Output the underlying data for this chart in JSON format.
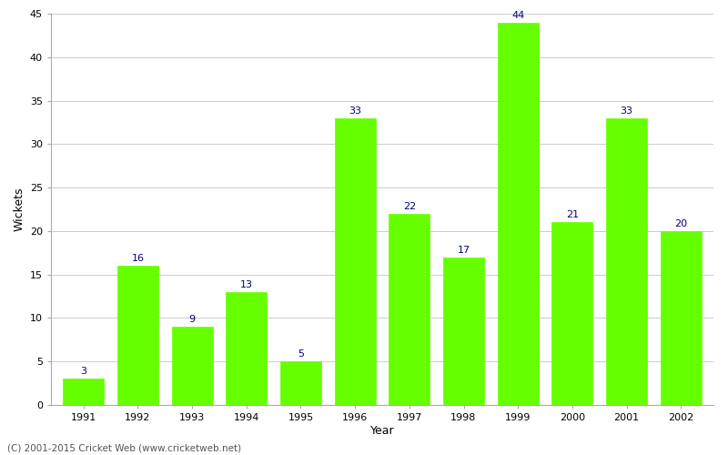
{
  "years": [
    "1991",
    "1992",
    "1993",
    "1994",
    "1995",
    "1996",
    "1997",
    "1998",
    "1999",
    "2000",
    "2001",
    "2002"
  ],
  "values": [
    3,
    16,
    9,
    13,
    5,
    33,
    22,
    17,
    44,
    21,
    33,
    20
  ],
  "bar_color": "#66ff00",
  "bar_edge_color": "#66ff00",
  "label_color": "#000080",
  "xlabel": "Year",
  "ylabel": "Wickets",
  "ylim": [
    0,
    45
  ],
  "yticks": [
    0,
    5,
    10,
    15,
    20,
    25,
    30,
    35,
    40,
    45
  ],
  "grid_color": "#cccccc",
  "bg_color": "#ffffff",
  "footer": "(C) 2001-2015 Cricket Web (www.cricketweb.net)",
  "axis_label_fontsize": 9,
  "tick_fontsize": 8,
  "bar_label_fontsize": 8,
  "footer_fontsize": 7.5,
  "bar_width": 0.75
}
